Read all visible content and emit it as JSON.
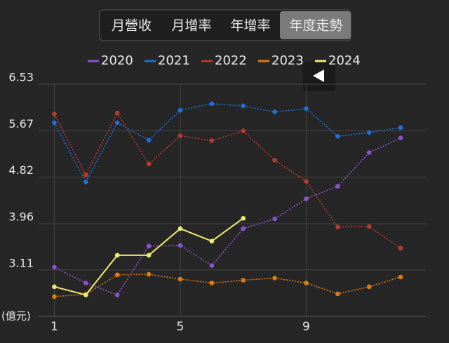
{
  "tabs": {
    "items": [
      "月營收",
      "月增率",
      "年增率",
      "年度走勢"
    ],
    "selected": 3
  },
  "chart_data": {
    "type": "line",
    "y_axis_label": "(億元)",
    "x": [
      1,
      2,
      3,
      4,
      5,
      6,
      7,
      8,
      9,
      10,
      11,
      12
    ],
    "xlim": [
      0.5,
      12.8
    ],
    "xticks": [
      1,
      5,
      9
    ],
    "ylim": [
      2.255,
      6.53
    ],
    "yticks": [
      3.11,
      3.96,
      4.82,
      5.67,
      6.53
    ],
    "grid": true,
    "legend": "top",
    "series": [
      {
        "name": "2020",
        "color": "#8c52cc",
        "style": "dotted",
        "values": [
          3.16,
          2.87,
          2.65,
          3.55,
          3.56,
          3.19,
          3.87,
          4.05,
          4.42,
          4.65,
          5.27,
          5.54
        ]
      },
      {
        "name": "2021",
        "color": "#1f6fd6",
        "style": "dotted",
        "values": [
          5.82,
          4.73,
          5.82,
          5.5,
          6.05,
          6.17,
          6.13,
          6.02,
          6.08,
          5.57,
          5.64,
          5.73
        ]
      },
      {
        "name": "2022",
        "color": "#b53b30",
        "style": "dotted",
        "values": [
          5.98,
          4.86,
          6.0,
          5.06,
          5.58,
          5.49,
          5.67,
          5.13,
          4.74,
          3.9,
          3.91,
          3.51
        ]
      },
      {
        "name": "2023",
        "color": "#dc7c12",
        "style": "dotted",
        "values": [
          2.62,
          2.66,
          3.02,
          3.03,
          2.94,
          2.87,
          2.92,
          2.96,
          2.87,
          2.67,
          2.8,
          2.98
        ]
      },
      {
        "name": "2024",
        "color": "#f2ea70",
        "style": "solid",
        "values": [
          2.8,
          2.65,
          3.38,
          3.38,
          3.87,
          3.64,
          4.06,
          null,
          null,
          null,
          null,
          null
        ]
      }
    ]
  }
}
